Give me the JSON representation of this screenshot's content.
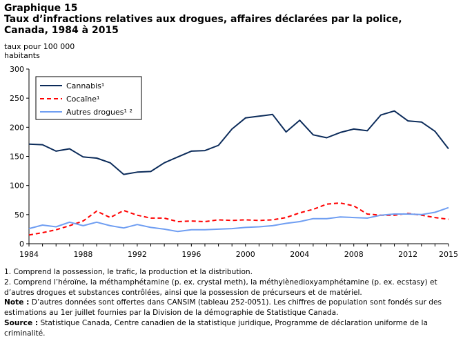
{
  "figure_label": "Graphique  15",
  "title": "Taux d’infractions  relatives aux drogues, affaires  déclarées par la police, Canada, 1984  à 2015",
  "y_unit": "taux pour 100 000 habitants",
  "colors": {
    "cannabis": "#0b2b5a",
    "cocaine": "#ff0000",
    "autres": "#6f9ef2",
    "axis": "#000000"
  },
  "chart_data": {
    "type": "line",
    "x": [
      1984,
      1985,
      1986,
      1987,
      1988,
      1989,
      1990,
      1991,
      1992,
      1993,
      1994,
      1995,
      1996,
      1997,
      1998,
      1999,
      2000,
      2001,
      2002,
      2003,
      2004,
      2005,
      2006,
      2007,
      2008,
      2009,
      2010,
      2011,
      2012,
      2013,
      2014,
      2015
    ],
    "series": [
      {
        "name": "Cannabis¹",
        "key": "cannabis",
        "values": [
          171,
          170,
          159,
          163,
          149,
          147,
          139,
          119,
          123,
          124,
          139,
          149,
          159,
          160,
          169,
          197,
          216,
          219,
          222,
          192,
          212,
          187,
          182,
          191,
          197,
          194,
          221,
          228,
          211,
          209,
          193,
          163
        ]
      },
      {
        "name": "Cocaïne¹",
        "key": "cocaine",
        "values": [
          15,
          19,
          24,
          31,
          39,
          56,
          45,
          57,
          49,
          44,
          44,
          38,
          39,
          38,
          41,
          40,
          41,
          40,
          41,
          45,
          53,
          59,
          68,
          70,
          65,
          51,
          49,
          49,
          52,
          49,
          45,
          42
        ]
      },
      {
        "name": "Autres drogues¹ ²",
        "key": "autres",
        "values": [
          26,
          32,
          29,
          37,
          31,
          37,
          31,
          27,
          33,
          28,
          25,
          21,
          24,
          24,
          25,
          26,
          28,
          29,
          31,
          35,
          38,
          43,
          43,
          46,
          45,
          44,
          49,
          51,
          51,
          50,
          54,
          62
        ]
      }
    ],
    "x_ticks": [
      "1984",
      "1988",
      "1992",
      "1996",
      "2000",
      "2004",
      "2008",
      "2012",
      "2015"
    ],
    "y_ticks": [
      "0",
      "50",
      "100",
      "150",
      "200",
      "250",
      "300"
    ],
    "xlim": [
      1984,
      2015
    ],
    "ylim": [
      0,
      300
    ],
    "grid": false,
    "legend_position": "top-left",
    "xlabel": "",
    "ylabel": "taux pour 100 000 habitants"
  },
  "notes": {
    "n1": "1. Comprend la possession, le trafic, la production et la distribution.",
    "n2": "2. Comprend l’héroïne, la méthamphétamine (p. ex. crystal meth), la méthylènedioxyamphétamine (p. ex. ecstasy) et d’autres drogues et substances contrôlées, ainsi que la possession de précurseurs et de matériel.",
    "note_label": "Note :",
    "note_text": " D’autres données sont offertes dans CANSIM (tableau 252-0051). Les chiffres de population sont fondés sur des estimations au 1er juillet fournies par la Division de la démographie de Statistique Canada.",
    "source_label": "Source :",
    "source_text": " Statistique Canada, Centre canadien de la statistique juridique, Programme de déclaration uniforme de la criminalité."
  }
}
